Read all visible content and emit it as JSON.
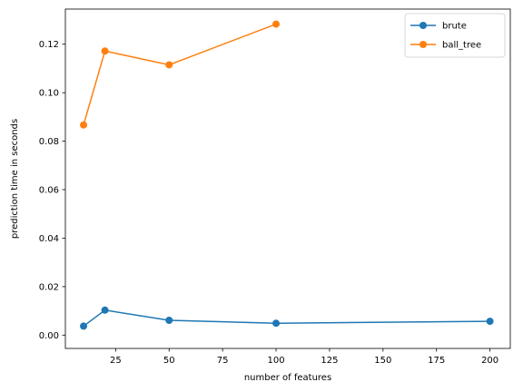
{
  "chart_data": {
    "type": "line",
    "title": "",
    "xlabel": "number of features",
    "ylabel": "prediction time in seconds",
    "xlim": [
      1.5,
      209.5
    ],
    "ylim": [
      -0.0055,
      0.1345
    ],
    "xticks": [
      25,
      50,
      75,
      100,
      125,
      150,
      175,
      200
    ],
    "yticks": [
      0.0,
      0.02,
      0.04,
      0.06,
      0.08,
      0.1,
      0.12
    ],
    "ytick_labels": [
      "0.00",
      "0.02",
      "0.04",
      "0.06",
      "0.08",
      "0.10",
      "0.12"
    ],
    "grid": false,
    "legend_position": "upper right",
    "series": [
      {
        "name": "brute",
        "color": "#1f77b4",
        "marker": "circle",
        "x": [
          10,
          20,
          50,
          100,
          200
        ],
        "y": [
          0.0037,
          0.0103,
          0.0061,
          0.0049,
          0.0057
        ]
      },
      {
        "name": "ball_tree",
        "color": "#ff7f0e",
        "marker": "circle",
        "x": [
          10,
          20,
          50,
          100
        ],
        "y": [
          0.0867,
          0.1172,
          0.1115,
          0.1283
        ]
      }
    ]
  }
}
